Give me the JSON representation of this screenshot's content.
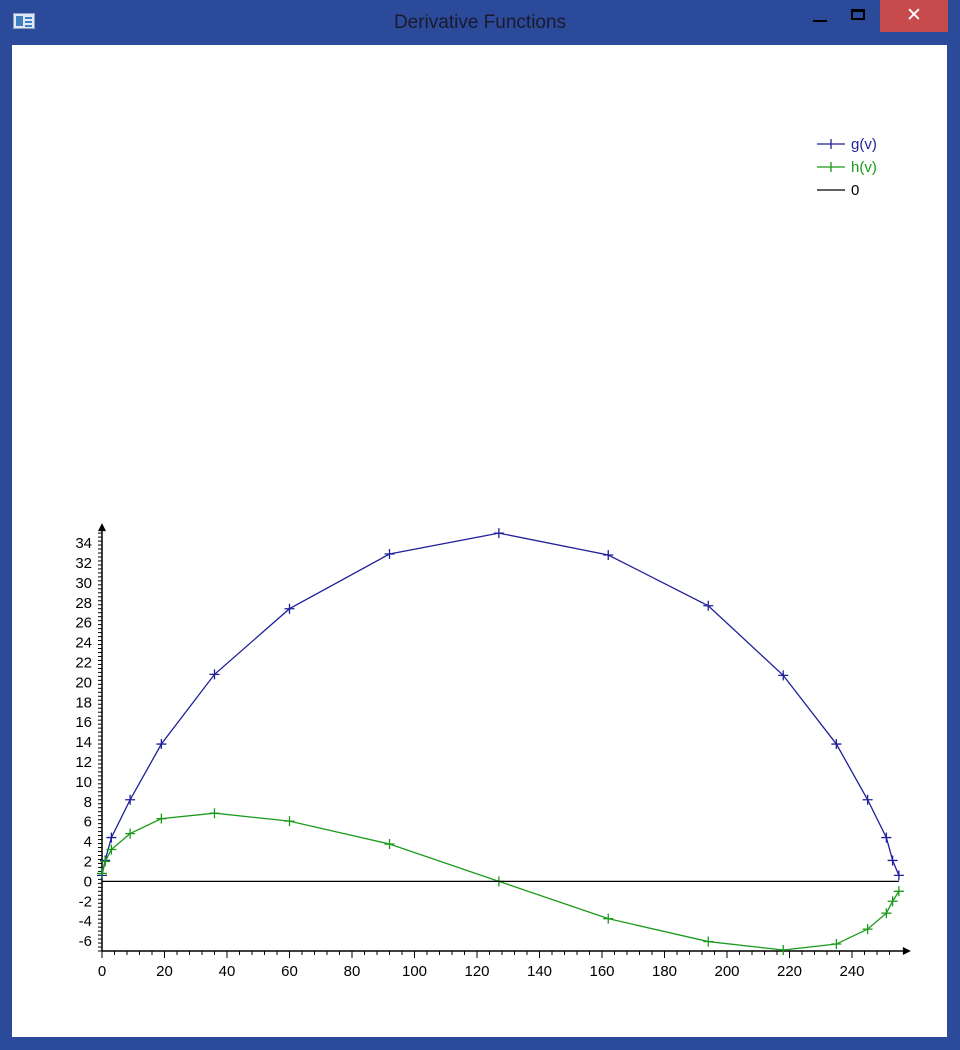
{
  "window": {
    "title": "Derivative Functions",
    "close_glyph": "✕"
  },
  "chart_data": {
    "type": "line",
    "xlim": [
      0,
      255
    ],
    "ylim": [
      -7,
      35
    ],
    "x_ticks": [
      0,
      20,
      40,
      60,
      80,
      100,
      120,
      140,
      160,
      180,
      200,
      220,
      240
    ],
    "y_ticks": [
      -6,
      -4,
      -2,
      0,
      2,
      4,
      6,
      8,
      10,
      12,
      14,
      16,
      18,
      20,
      22,
      24,
      26,
      28,
      30,
      32,
      34
    ],
    "grid": false,
    "legend_position": "top-right",
    "series": [
      {
        "name": "g(v)",
        "color": "#1f1f9a",
        "x": [
          0,
          1,
          3,
          9,
          19,
          36,
          60,
          92,
          127,
          162,
          194,
          218,
          235,
          245,
          251,
          253,
          255
        ],
        "y": [
          0.6,
          2.1,
          4.4,
          8.2,
          13.8,
          20.8,
          27.4,
          32.9,
          35.0,
          32.8,
          27.7,
          20.7,
          13.8,
          8.2,
          4.4,
          2.1,
          0.6
        ]
      },
      {
        "name": "h(v)",
        "color": "#1a9a1a",
        "x": [
          0,
          1,
          3,
          9,
          19,
          36,
          60,
          92,
          127,
          162,
          194,
          218,
          235,
          245,
          251,
          253,
          255
        ],
        "y": [
          0.8,
          2.0,
          3.2,
          4.8,
          6.3,
          6.85,
          6.05,
          3.75,
          0.0,
          -3.75,
          -6.05,
          -6.9,
          -6.3,
          -4.8,
          -3.2,
          -2.0,
          -1.0
        ]
      },
      {
        "name": "0",
        "color": "#000000",
        "x": [
          0,
          255
        ],
        "y": [
          0,
          0
        ]
      }
    ]
  }
}
